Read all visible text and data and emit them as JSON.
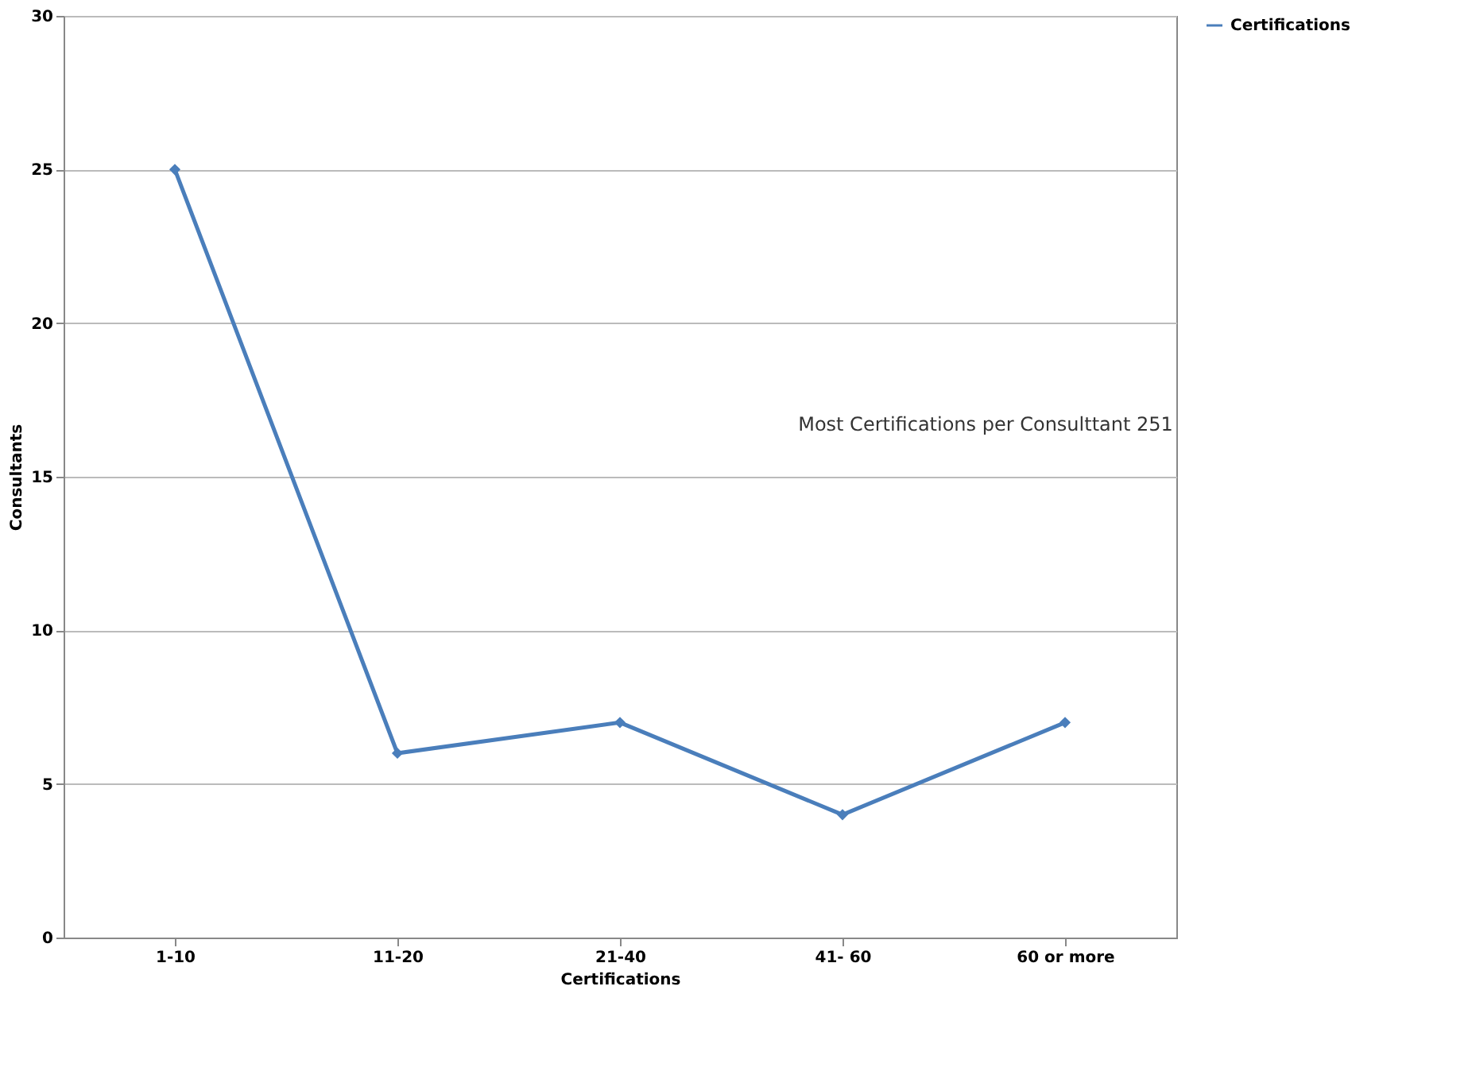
{
  "chart_data": {
    "type": "line",
    "xlabel": "Certifications",
    "ylabel": "Consultants",
    "categories": [
      "1-10",
      "11-20",
      "21-40",
      "41- 60",
      "60 or more"
    ],
    "series": [
      {
        "name": "Certifications",
        "color": "#4a7ebb",
        "values": [
          25,
          6,
          7,
          4,
          7
        ]
      }
    ],
    "ylim": [
      0,
      30
    ],
    "yticks": [
      0,
      5,
      10,
      15,
      20,
      25,
      30
    ],
    "grid": "y",
    "legend": "right",
    "marker": "diamond",
    "line_style": "solid",
    "annotations": [
      "Most Certifications per Consulttant  251"
    ]
  }
}
